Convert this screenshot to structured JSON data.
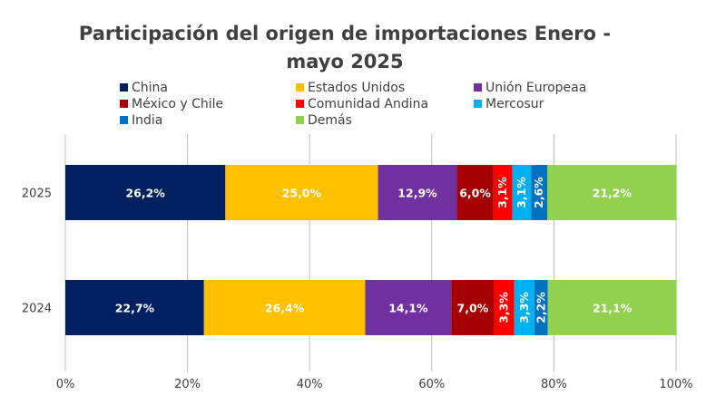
{
  "chart_data": {
    "type": "bar",
    "orientation": "horizontal-stacked-100",
    "title_lines": [
      "Participación del origen de importaciones Enero -",
      "mayo 2025"
    ],
    "categories": [
      "2025",
      "2024"
    ],
    "series": [
      {
        "name": "China",
        "color": "#002060",
        "values": [
          26.2,
          22.7
        ],
        "labels": [
          "26,2%",
          "22,7%"
        ]
      },
      {
        "name": "Estados Unidos",
        "color": "#FFC000",
        "values": [
          25.0,
          26.4
        ],
        "labels": [
          "25,0%",
          "26,4%"
        ]
      },
      {
        "name": "Unión Europeaa",
        "color": "#7030A0",
        "values": [
          12.9,
          14.1
        ],
        "labels": [
          "12,9%",
          "14,1%"
        ]
      },
      {
        "name": "México y Chile",
        "color": "#A50000",
        "values": [
          6.0,
          7.0
        ],
        "labels": [
          "6,0%",
          "7,0%"
        ]
      },
      {
        "name": "Comunidad Andina",
        "color": "#FF0000",
        "values": [
          3.1,
          3.3
        ],
        "labels": [
          "3,1%",
          "3,3%"
        ]
      },
      {
        "name": "Mercosur",
        "color": "#00B0F0",
        "values": [
          3.1,
          3.3
        ],
        "labels": [
          "3,1%",
          "3,3%"
        ]
      },
      {
        "name": "India",
        "color": "#0070C0",
        "values": [
          2.6,
          2.2
        ],
        "labels": [
          "2,6%",
          "2,2%"
        ]
      },
      {
        "name": "Demás",
        "color": "#92D050",
        "values": [
          21.2,
          21.1
        ],
        "labels": [
          "21,2%",
          "21,1%"
        ]
      }
    ],
    "x_ticks": [
      "0%",
      "20%",
      "40%",
      "60%",
      "80%",
      "100%"
    ],
    "xlim": [
      0,
      100
    ],
    "grid": true,
    "legend_position": "top"
  }
}
